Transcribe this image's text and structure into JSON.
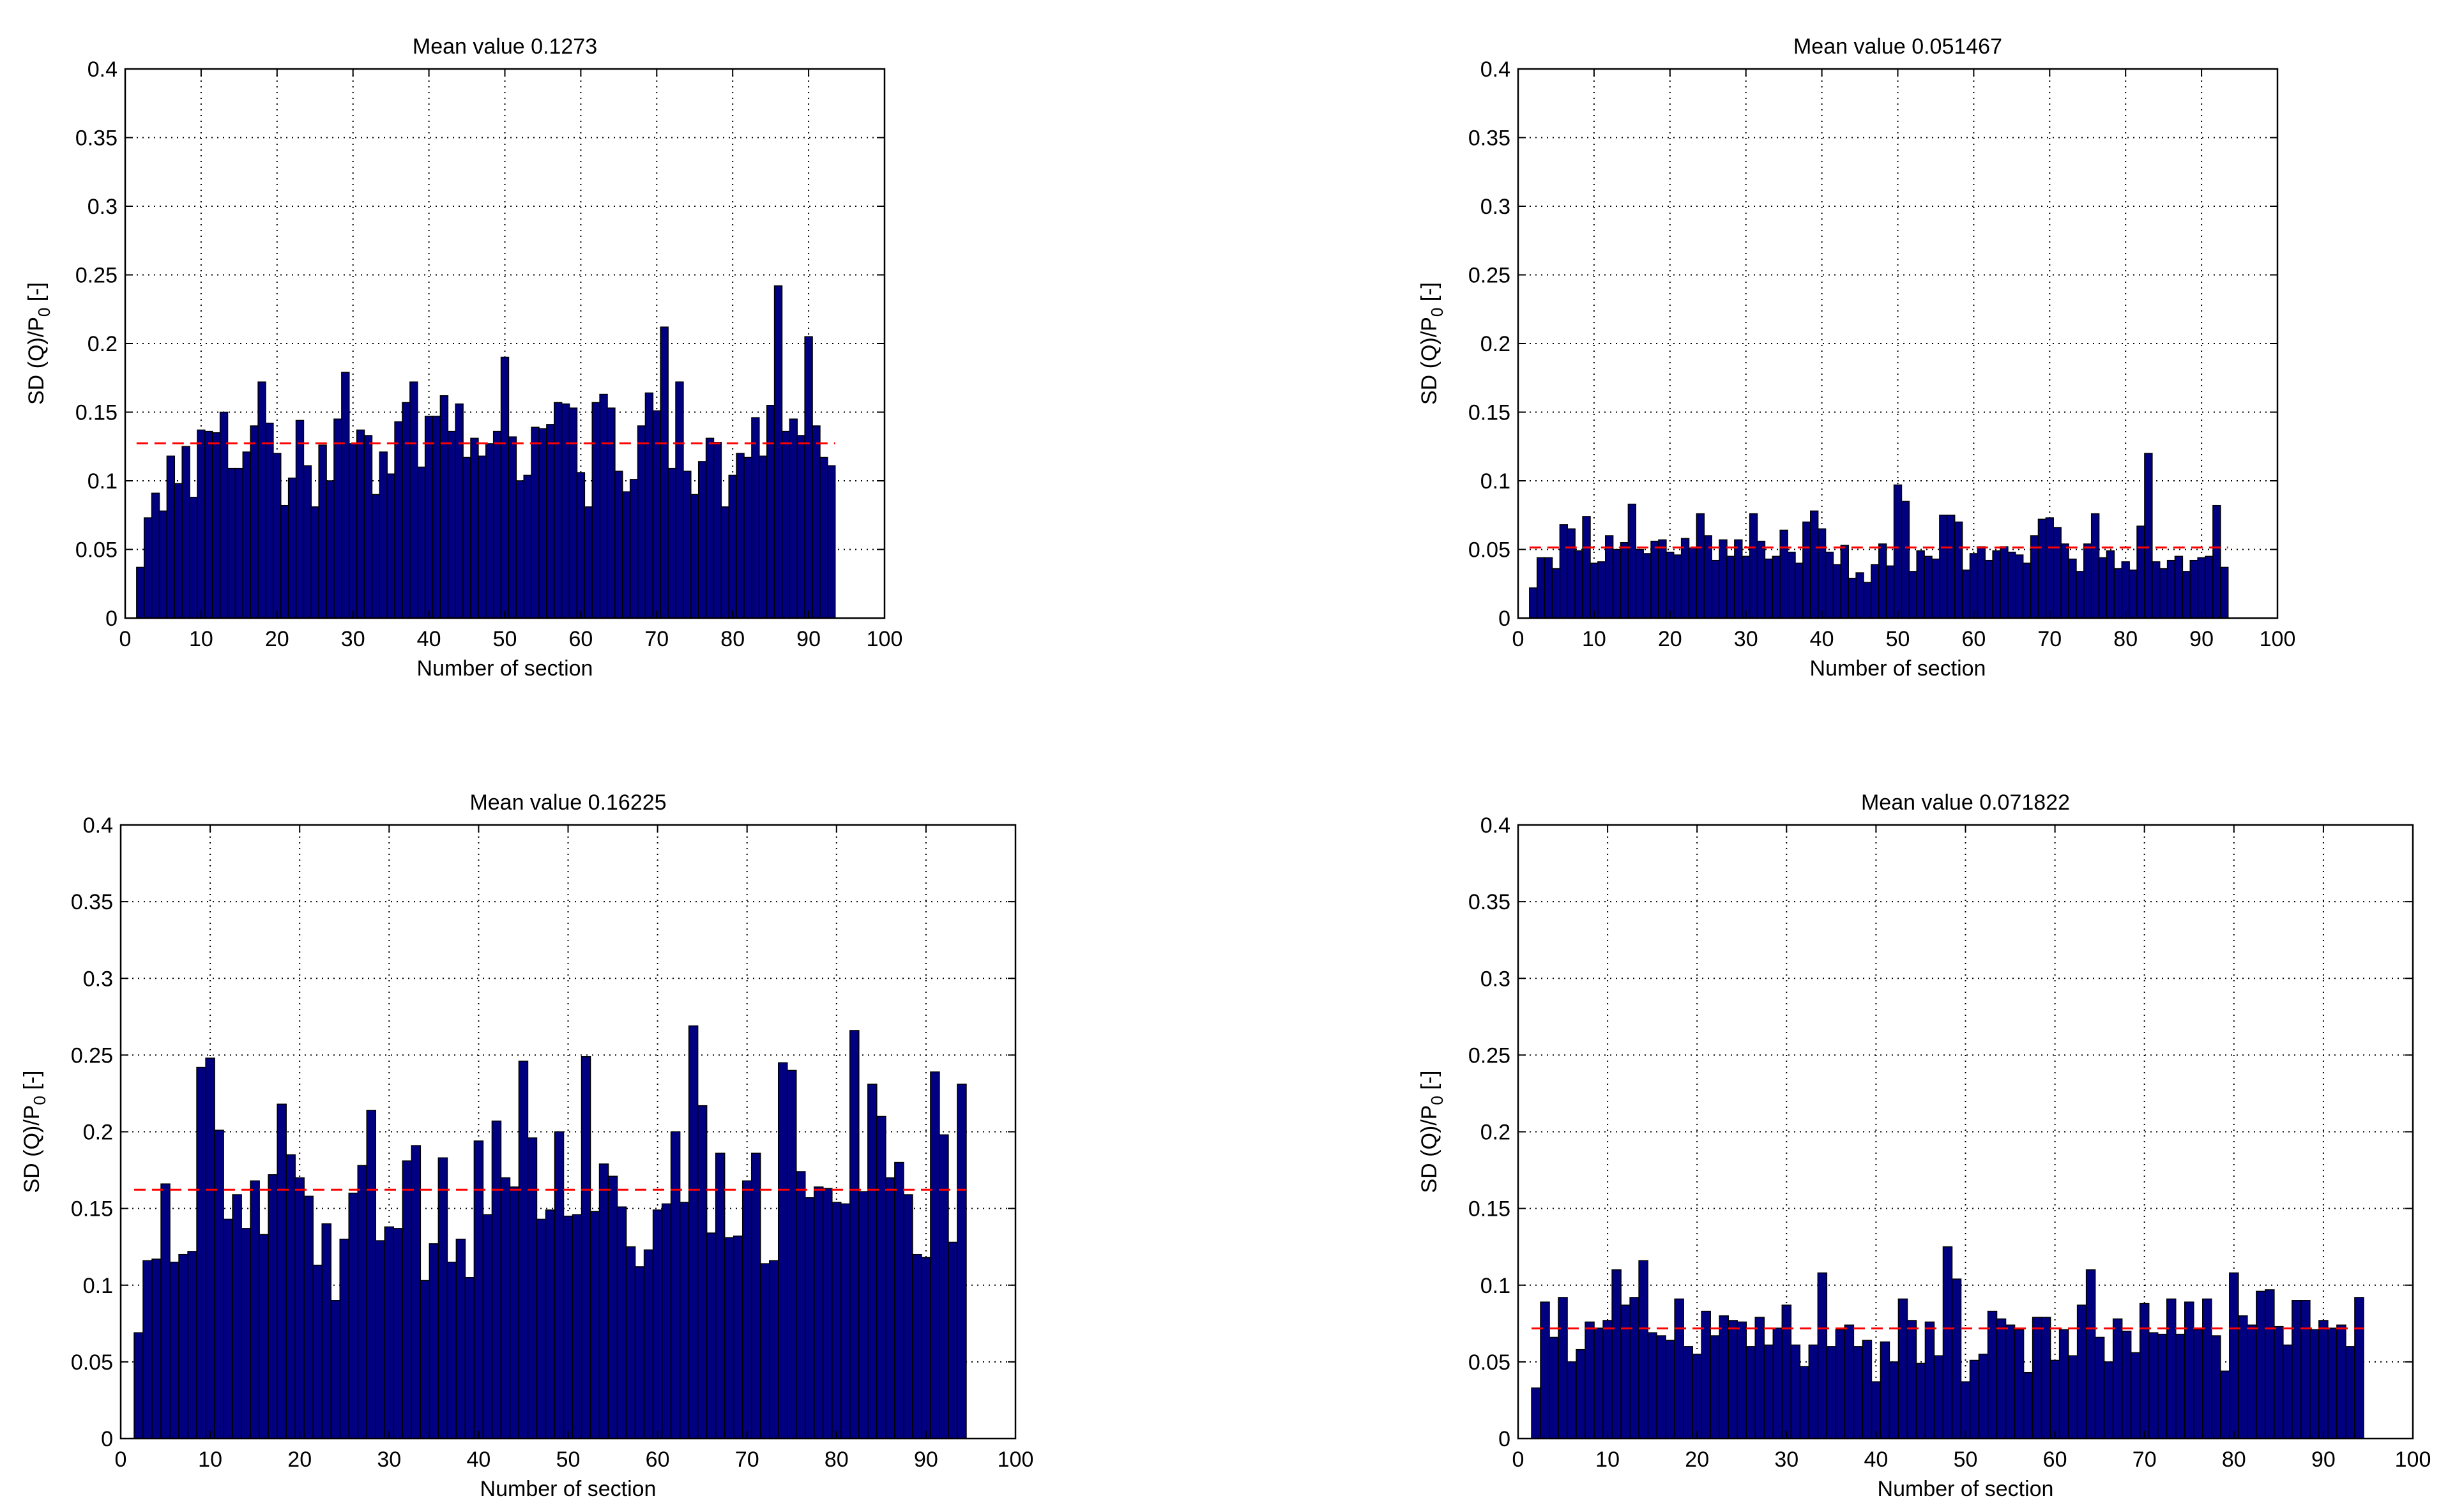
{
  "chart_data": [
    {
      "type": "bar",
      "title": "Mean value 0.1273",
      "xlabel": "Number of section",
      "ylabel_base": "SD (Q)/P",
      "ylabel_sub": "0",
      "ylabel_tail": " [-]",
      "xlim": [
        0,
        100
      ],
      "ylim": [
        0,
        0.4
      ],
      "xticks": [
        "0",
        "10",
        "20",
        "30",
        "40",
        "50",
        "60",
        "70",
        "80",
        "90",
        "100"
      ],
      "yticks": [
        "0",
        "0.05",
        "0.1",
        "0.15",
        "0.2",
        "0.25",
        "0.3",
        "0.35",
        "0.4"
      ],
      "grid": true,
      "mean": 0.1273,
      "bar_color": "#000080",
      "mean_color": "#ff0000",
      "x": [
        2,
        3,
        4,
        5,
        6,
        7,
        8,
        9,
        10,
        11,
        12,
        13,
        14,
        15,
        16,
        17,
        18,
        19,
        20,
        21,
        22,
        23,
        24,
        25,
        26,
        27,
        28,
        29,
        30,
        31,
        32,
        33,
        34,
        35,
        36,
        37,
        38,
        39,
        40,
        41,
        42,
        43,
        44,
        45,
        46,
        47,
        48,
        49,
        50,
        51,
        52,
        53,
        54,
        55,
        56,
        57,
        58,
        59,
        60,
        61,
        62,
        63,
        64,
        65,
        66,
        67,
        68,
        69,
        70,
        71,
        72,
        73,
        74,
        75,
        76,
        77,
        78,
        79,
        80,
        81,
        82,
        83,
        84,
        85,
        86,
        87,
        88,
        89,
        90,
        91,
        92,
        93
      ],
      "values": [
        0.037,
        0.073,
        0.091,
        0.078,
        0.118,
        0.098,
        0.125,
        0.088,
        0.137,
        0.136,
        0.135,
        0.15,
        0.109,
        0.109,
        0.121,
        0.14,
        0.172,
        0.142,
        0.12,
        0.082,
        0.102,
        0.144,
        0.111,
        0.081,
        0.126,
        0.1,
        0.145,
        0.179,
        0.127,
        0.137,
        0.133,
        0.09,
        0.121,
        0.105,
        0.143,
        0.157,
        0.172,
        0.11,
        0.147,
        0.147,
        0.162,
        0.136,
        0.156,
        0.117,
        0.131,
        0.118,
        0.127,
        0.136,
        0.19,
        0.132,
        0.1,
        0.104,
        0.139,
        0.138,
        0.141,
        0.157,
        0.156,
        0.153,
        0.106,
        0.081,
        0.157,
        0.163,
        0.153,
        0.107,
        0.092,
        0.101,
        0.14,
        0.164,
        0.151,
        0.212,
        0.109,
        0.172,
        0.107,
        0.09,
        0.114,
        0.131,
        0.128,
        0.081,
        0.104,
        0.12,
        0.117,
        0.146,
        0.118,
        0.155,
        0.242,
        0.136,
        0.145,
        0.133,
        0.205,
        0.14,
        0.117,
        0.111
      ]
    },
    {
      "type": "bar",
      "title": "Mean value 0.051467",
      "xlabel": "Number of section",
      "ylabel_base": "SD (Q)/P",
      "ylabel_sub": "0",
      "ylabel_tail": " [-]",
      "xlim": [
        0,
        100
      ],
      "ylim": [
        0,
        0.4
      ],
      "xticks": [
        "0",
        "10",
        "20",
        "30",
        "40",
        "50",
        "60",
        "70",
        "80",
        "90",
        "100"
      ],
      "yticks": [
        "0",
        "0.05",
        "0.1",
        "0.15",
        "0.2",
        "0.25",
        "0.3",
        "0.35",
        "0.4"
      ],
      "grid": true,
      "mean": 0.051467,
      "bar_color": "#000080",
      "mean_color": "#ff0000",
      "x": [
        2,
        3,
        4,
        5,
        6,
        7,
        8,
        9,
        10,
        11,
        12,
        13,
        14,
        15,
        16,
        17,
        18,
        19,
        20,
        21,
        22,
        23,
        24,
        25,
        26,
        27,
        28,
        29,
        30,
        31,
        32,
        33,
        34,
        35,
        36,
        37,
        38,
        39,
        40,
        41,
        42,
        43,
        44,
        45,
        46,
        47,
        48,
        49,
        50,
        51,
        52,
        53,
        54,
        55,
        56,
        57,
        58,
        59,
        60,
        61,
        62,
        63,
        64,
        65,
        66,
        67,
        68,
        69,
        70,
        71,
        72,
        73,
        74,
        75,
        76,
        77,
        78,
        79,
        80,
        81,
        82,
        83,
        84,
        85,
        86,
        87,
        88,
        89,
        90,
        91,
        92,
        93
      ],
      "values": [
        0.022,
        0.044,
        0.044,
        0.036,
        0.068,
        0.065,
        0.049,
        0.074,
        0.04,
        0.041,
        0.06,
        0.05,
        0.055,
        0.083,
        0.05,
        0.047,
        0.056,
        0.057,
        0.048,
        0.046,
        0.058,
        0.051,
        0.076,
        0.06,
        0.042,
        0.057,
        0.045,
        0.057,
        0.045,
        0.076,
        0.056,
        0.043,
        0.045,
        0.064,
        0.048,
        0.04,
        0.07,
        0.078,
        0.065,
        0.048,
        0.039,
        0.053,
        0.029,
        0.033,
        0.026,
        0.039,
        0.054,
        0.038,
        0.097,
        0.085,
        0.034,
        0.049,
        0.045,
        0.043,
        0.075,
        0.075,
        0.07,
        0.035,
        0.047,
        0.052,
        0.042,
        0.049,
        0.052,
        0.048,
        0.046,
        0.04,
        0.06,
        0.072,
        0.073,
        0.066,
        0.054,
        0.043,
        0.034,
        0.054,
        0.076,
        0.044,
        0.049,
        0.036,
        0.041,
        0.035,
        0.067,
        0.12,
        0.041,
        0.036,
        0.042,
        0.045,
        0.034,
        0.042,
        0.044,
        0.045,
        0.082,
        0.037
      ]
    },
    {
      "type": "bar",
      "title": "Mean value 0.16225",
      "xlabel": "Number of section",
      "ylabel_base": "SD (Q)/P",
      "ylabel_sub": "0",
      "ylabel_tail": " [-]",
      "xlim": [
        0,
        100
      ],
      "ylim": [
        0,
        0.4
      ],
      "xticks": [
        "0",
        "10",
        "20",
        "30",
        "40",
        "50",
        "60",
        "70",
        "80",
        "90",
        "100"
      ],
      "yticks": [
        "0",
        "0.05",
        "0.1",
        "0.15",
        "0.2",
        "0.25",
        "0.3",
        "0.35",
        "0.4"
      ],
      "grid": true,
      "mean": 0.16225,
      "bar_color": "#000080",
      "mean_color": "#ff0000",
      "x": [
        2,
        3,
        4,
        5,
        6,
        7,
        8,
        9,
        10,
        11,
        12,
        13,
        14,
        15,
        16,
        17,
        18,
        19,
        20,
        21,
        22,
        23,
        24,
        25,
        26,
        27,
        28,
        29,
        30,
        31,
        32,
        33,
        34,
        35,
        36,
        37,
        38,
        39,
        40,
        41,
        42,
        43,
        44,
        45,
        46,
        47,
        48,
        49,
        50,
        51,
        52,
        53,
        54,
        55,
        56,
        57,
        58,
        59,
        60,
        61,
        62,
        63,
        64,
        65,
        66,
        67,
        68,
        69,
        70,
        71,
        72,
        73,
        74,
        75,
        76,
        77,
        78,
        79,
        80,
        81,
        82,
        83,
        84,
        85,
        86,
        87,
        88,
        89,
        90,
        91,
        92,
        93,
        94
      ],
      "values": [
        0.069,
        0.116,
        0.117,
        0.166,
        0.115,
        0.12,
        0.122,
        0.242,
        0.248,
        0.201,
        0.143,
        0.159,
        0.137,
        0.168,
        0.133,
        0.172,
        0.218,
        0.185,
        0.17,
        0.158,
        0.113,
        0.14,
        0.09,
        0.13,
        0.16,
        0.178,
        0.214,
        0.129,
        0.138,
        0.137,
        0.181,
        0.191,
        0.103,
        0.127,
        0.183,
        0.115,
        0.13,
        0.105,
        0.194,
        0.146,
        0.207,
        0.17,
        0.164,
        0.246,
        0.196,
        0.143,
        0.149,
        0.2,
        0.145,
        0.146,
        0.249,
        0.148,
        0.179,
        0.171,
        0.151,
        0.125,
        0.112,
        0.123,
        0.149,
        0.153,
        0.2,
        0.154,
        0.269,
        0.217,
        0.134,
        0.186,
        0.131,
        0.132,
        0.168,
        0.186,
        0.114,
        0.116,
        0.245,
        0.24,
        0.174,
        0.157,
        0.164,
        0.163,
        0.154,
        0.153,
        0.266,
        0.161,
        0.231,
        0.21,
        0.17,
        0.18,
        0.159,
        0.12,
        0.118,
        0.239,
        0.198,
        0.128,
        0.231
      ]
    },
    {
      "type": "bar",
      "title": "Mean value 0.071822",
      "xlabel": "Number of section",
      "ylabel_base": "SD (Q)/P",
      "ylabel_sub": "0",
      "ylabel_tail": " [-]",
      "xlim": [
        0,
        100
      ],
      "ylim": [
        0,
        0.4
      ],
      "xticks": [
        "0",
        "10",
        "20",
        "30",
        "40",
        "50",
        "60",
        "70",
        "80",
        "90",
        "100"
      ],
      "yticks": [
        "0",
        "0.05",
        "0.1",
        "0.15",
        "0.2",
        "0.25",
        "0.3",
        "0.35",
        "0.4"
      ],
      "grid": true,
      "mean": 0.071822,
      "bar_color": "#000080",
      "mean_color": "#ff0000",
      "x": [
        2,
        3,
        4,
        5,
        6,
        7,
        8,
        9,
        10,
        11,
        12,
        13,
        14,
        15,
        16,
        17,
        18,
        19,
        20,
        21,
        22,
        23,
        24,
        25,
        26,
        27,
        28,
        29,
        30,
        31,
        32,
        33,
        34,
        35,
        36,
        37,
        38,
        39,
        40,
        41,
        42,
        43,
        44,
        45,
        46,
        47,
        48,
        49,
        50,
        51,
        52,
        53,
        54,
        55,
        56,
        57,
        58,
        59,
        60,
        61,
        62,
        63,
        64,
        65,
        66,
        67,
        68,
        69,
        70,
        71,
        72,
        73,
        74,
        75,
        76,
        77,
        78,
        79,
        80,
        81,
        82,
        83,
        84,
        85,
        86,
        87,
        88,
        89,
        90,
        91,
        92,
        93,
        94
      ],
      "values": [
        0.033,
        0.089,
        0.066,
        0.092,
        0.05,
        0.058,
        0.076,
        0.072,
        0.077,
        0.11,
        0.087,
        0.092,
        0.116,
        0.069,
        0.067,
        0.064,
        0.091,
        0.06,
        0.055,
        0.083,
        0.067,
        0.08,
        0.077,
        0.076,
        0.06,
        0.079,
        0.061,
        0.072,
        0.087,
        0.061,
        0.047,
        0.061,
        0.108,
        0.06,
        0.071,
        0.074,
        0.06,
        0.064,
        0.037,
        0.063,
        0.05,
        0.091,
        0.077,
        0.049,
        0.076,
        0.054,
        0.125,
        0.104,
        0.037,
        0.051,
        0.055,
        0.083,
        0.078,
        0.074,
        0.071,
        0.043,
        0.079,
        0.079,
        0.051,
        0.071,
        0.054,
        0.087,
        0.11,
        0.066,
        0.05,
        0.078,
        0.07,
        0.056,
        0.088,
        0.069,
        0.068,
        0.091,
        0.068,
        0.089,
        0.071,
        0.091,
        0.067,
        0.044,
        0.108,
        0.08,
        0.074,
        0.096,
        0.097,
        0.073,
        0.061,
        0.09,
        0.09,
        0.071,
        0.077,
        0.072,
        0.074,
        0.06,
        0.092
      ]
    }
  ]
}
